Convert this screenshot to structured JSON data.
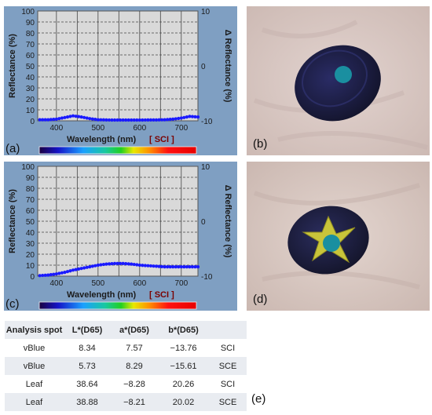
{
  "panels": [
    {
      "label": "(a)",
      "chart_data": {
        "type": "line",
        "xlabel": "Wavelength (nm)",
        "xlabel_suffix": "[ SCI ]",
        "ylabel": "Reflectance (%)",
        "y2label": "Δ Reflectance (%)",
        "xlim": [
          355,
          740
        ],
        "ylim": [
          0,
          100
        ],
        "y2lim": [
          -10,
          10
        ],
        "xticks": [
          400,
          500,
          600,
          700
        ],
        "yticks": [
          0,
          10,
          20,
          30,
          40,
          50,
          60,
          70,
          80,
          90,
          100
        ],
        "y2ticks": [
          -10,
          0,
          10
        ],
        "grid": true,
        "series": [
          {
            "color": "#1a1aff",
            "x": [
              360,
              380,
              400,
              420,
              440,
              460,
              480,
              500,
              520,
              540,
              560,
              580,
              600,
              620,
              640,
              660,
              680,
              700,
              720,
              740
            ],
            "y": [
              1.0,
              1.0,
              1.5,
              3.0,
              4.5,
              3.5,
              2.0,
              1.0,
              0.8,
              0.7,
              0.7,
              0.7,
              0.7,
              0.8,
              0.8,
              1.0,
              1.5,
              2.5,
              4.0,
              3.5
            ]
          }
        ]
      }
    },
    {
      "label": "(c)",
      "chart_data": {
        "type": "line",
        "xlabel": "Wavelength (nm)",
        "xlabel_suffix": "[ SCI ]",
        "ylabel": "Reflectance (%)",
        "y2label": "Δ Reflectance (%)",
        "xlim": [
          355,
          740
        ],
        "ylim": [
          0,
          100
        ],
        "y2lim": [
          -10,
          10
        ],
        "xticks": [
          400,
          500,
          600,
          700
        ],
        "yticks": [
          0,
          10,
          20,
          30,
          40,
          50,
          60,
          70,
          80,
          90,
          100
        ],
        "y2ticks": [
          -10,
          0,
          10
        ],
        "grid": true,
        "series": [
          {
            "color": "#1a1aff",
            "x": [
              360,
              380,
              400,
              420,
              440,
              460,
              480,
              500,
              520,
              540,
              560,
              580,
              600,
              620,
              640,
              660,
              680,
              700,
              720,
              740
            ],
            "y": [
              0.5,
              1.0,
              2.0,
              3.5,
              5.5,
              7.0,
              8.5,
              10.0,
              11.0,
              11.5,
              11.5,
              11.0,
              10.0,
              9.5,
              9.0,
              8.5,
              8.5,
              8.5,
              8.5,
              8.5
            ]
          }
        ]
      }
    }
  ],
  "photos": [
    {
      "label": "(b)",
      "marker": "cyan-spot"
    },
    {
      "label": "(d)",
      "marker": "cyan-spot"
    }
  ],
  "table_label": "(e)",
  "table": {
    "headers": [
      "Analysis spot",
      "L*(D65)",
      "a*(D65)",
      "b*(D65)",
      ""
    ],
    "rows": [
      [
        "vBlue",
        "8.34",
        "7.57",
        "−13.76",
        "SCI"
      ],
      [
        "vBlue",
        "5.73",
        "8.29",
        "−15.61",
        "SCE"
      ],
      [
        "Leaf",
        "38.64",
        "−8.28",
        "20.26",
        "SCI"
      ],
      [
        "Leaf",
        "38.88",
        "−8.21",
        "20.02",
        "SCE"
      ]
    ]
  },
  "colors": {
    "panel_bg": "#7f9fc2",
    "plot_bg": "#d9d9d9",
    "series": "#1a1aff",
    "photo_bg": "#d7c7c2",
    "pebble": "#1e2048",
    "spot": "#1a8fa0",
    "leaf": "#c9c43a"
  }
}
